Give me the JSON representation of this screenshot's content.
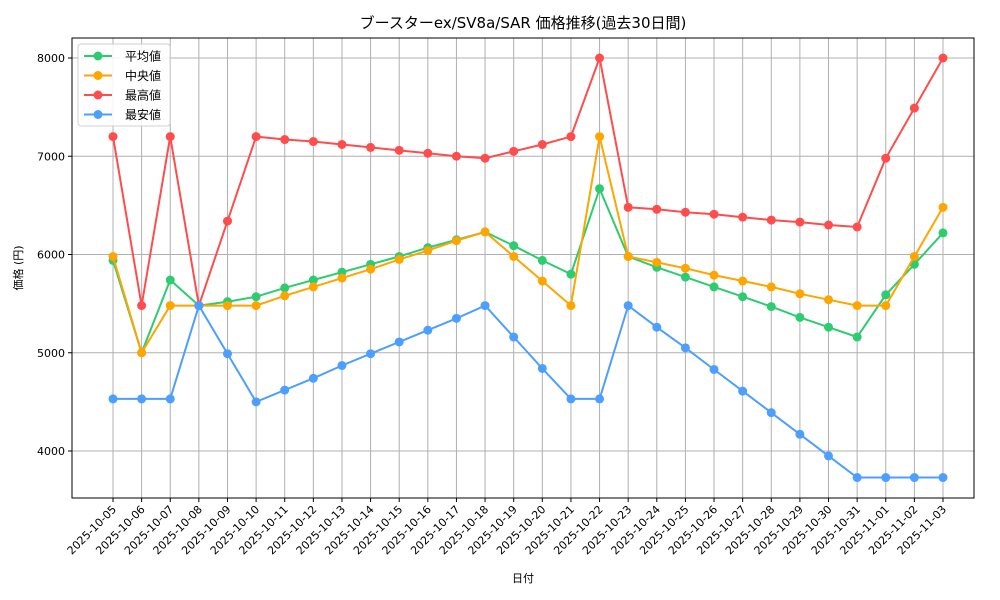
{
  "chart_data": {
    "type": "line",
    "title": "ブースターex/SV8a/SAR 価格推移(過去30日間)",
    "xlabel": "日付",
    "ylabel": "価格 (円)",
    "ylim": [
      3530,
      8220
    ],
    "yticks": [
      4000,
      5000,
      6000,
      7000,
      8000
    ],
    "grid": true,
    "legend_position": "upper left",
    "categories": [
      "2025-10-05",
      "2025-10-06",
      "2025-10-07",
      "2025-10-08",
      "2025-10-09",
      "2025-10-10",
      "2025-10-11",
      "2025-10-12",
      "2025-10-13",
      "2025-10-14",
      "2025-10-15",
      "2025-10-16",
      "2025-10-17",
      "2025-10-18",
      "2025-10-19",
      "2025-10-20",
      "2025-10-21",
      "2025-10-22",
      "2025-10-23",
      "2025-10-24",
      "2025-10-25",
      "2025-10-26",
      "2025-10-27",
      "2025-10-28",
      "2025-10-29",
      "2025-10-30",
      "2025-10-31",
      "2025-11-01",
      "2025-11-02",
      "2025-11-03"
    ],
    "series": [
      {
        "name": "平均値",
        "color": "#2ecc71",
        "values": [
          5940,
          5000,
          5740,
          5480,
          5520,
          5570,
          5660,
          5740,
          5820,
          5900,
          5980,
          6070,
          6150,
          6230,
          6090,
          5940,
          5800,
          6670,
          5980,
          5870,
          5770,
          5670,
          5570,
          5470,
          5360,
          5260,
          5160,
          5590,
          5900,
          6220
        ]
      },
      {
        "name": "中央値",
        "color": "#ffa500",
        "values": [
          5980,
          5000,
          5480,
          5480,
          5480,
          5480,
          5580,
          5670,
          5760,
          5850,
          5950,
          6040,
          6140,
          6230,
          5980,
          5730,
          5480,
          7200,
          5980,
          5920,
          5860,
          5790,
          5730,
          5670,
          5600,
          5540,
          5480,
          5480,
          5980,
          6480
        ]
      },
      {
        "name": "最高値",
        "color": "#ff4d4d",
        "values": [
          7200,
          5480,
          7200,
          5480,
          6340,
          7200,
          7170,
          7150,
          7120,
          7090,
          7060,
          7030,
          7000,
          6980,
          7050,
          7120,
          7200,
          8000,
          6480,
          6460,
          6430,
          6410,
          6380,
          6350,
          6330,
          6300,
          6280,
          6980,
          7490,
          8000
        ]
      },
      {
        "name": "最安値",
        "color": "#4d9fff",
        "values": [
          4530,
          4530,
          4530,
          5480,
          4990,
          4500,
          4620,
          4740,
          4870,
          4990,
          5110,
          5230,
          5350,
          5480,
          5160,
          4840,
          4530,
          4530,
          5480,
          5260,
          5050,
          4830,
          4610,
          4390,
          4170,
          3950,
          3730,
          3730,
          3730,
          3730
        ]
      }
    ]
  }
}
